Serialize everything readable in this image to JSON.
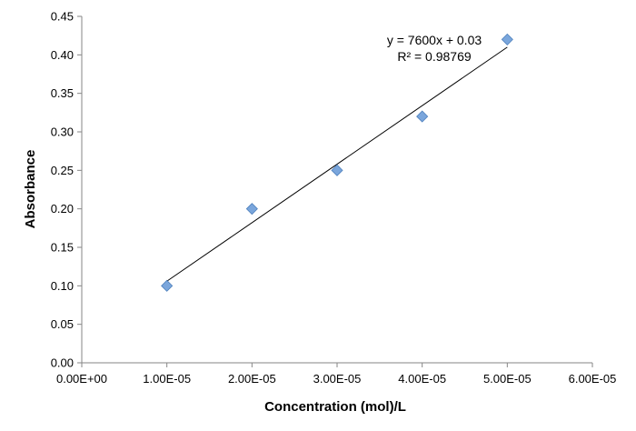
{
  "chart_data": {
    "type": "scatter",
    "title": "",
    "xlabel": "Concentration (mol)/L",
    "ylabel": "Absorbance",
    "xlim": [
      0,
      6e-05
    ],
    "ylim": [
      0,
      0.45
    ],
    "x_ticks": [
      0,
      1e-05,
      2e-05,
      3e-05,
      4e-05,
      5e-05,
      6e-05
    ],
    "x_tick_labels": [
      "0.00E+00",
      "1.00E-05",
      "2.00E-05",
      "3.00E-05",
      "4.00E-05",
      "5.00E-05",
      "6.00E-05"
    ],
    "y_ticks": [
      0,
      0.05,
      0.1,
      0.15,
      0.2,
      0.25,
      0.3,
      0.35,
      0.4,
      0.45
    ],
    "y_tick_labels": [
      "0.00",
      "0.05",
      "0.10",
      "0.15",
      "0.20",
      "0.25",
      "0.30",
      "0.35",
      "0.40",
      "0.45"
    ],
    "grid": false,
    "legend": "none",
    "series": [
      {
        "x": [
          1e-05,
          2e-05,
          3e-05,
          4e-05,
          5e-05
        ],
        "y": [
          0.1,
          0.2,
          0.25,
          0.32,
          0.42
        ],
        "marker": "diamond",
        "color": "#7aa6dc"
      }
    ],
    "trendline": {
      "type": "linear",
      "slope": 7600,
      "intercept": 0.03,
      "x_range": [
        1e-05,
        5e-05
      ],
      "color": "#000000",
      "equation_label": "y = 7600x + 0.03",
      "r2_label": "R² = 0.98769"
    }
  }
}
